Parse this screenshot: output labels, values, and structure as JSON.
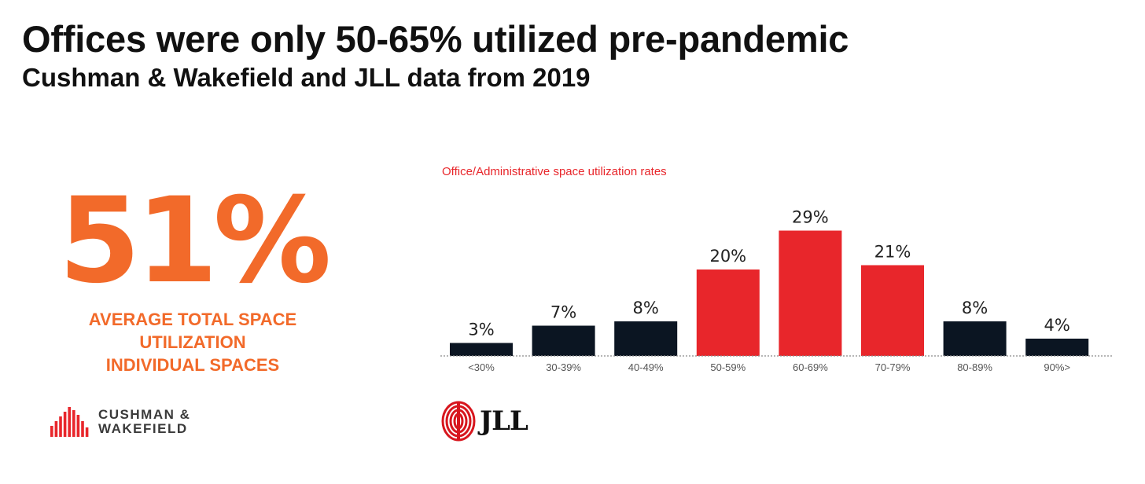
{
  "header": {
    "title": "Offices were only 50-65% utilized pre-pandemic",
    "subtitle": "Cushman & Wakefield and JLL data from 2019"
  },
  "stat": {
    "value": "51%",
    "caption_lines": [
      "AVERAGE TOTAL SPACE",
      "UTILIZATION",
      "INDIVIDUAL SPACES"
    ],
    "color": "#f26a2a"
  },
  "logos": {
    "cushman": {
      "lines": [
        "CUSHMAN &",
        "WAKEFIELD"
      ],
      "color": "#e8262b"
    },
    "jll": {
      "text": "JLL",
      "color": "#d7161e"
    }
  },
  "chart_data": {
    "type": "bar",
    "title": "Office/Administrative space utilization rates",
    "categories": [
      "<30%",
      "30-39%",
      "40-49%",
      "50-59%",
      "60-69%",
      "70-79%",
      "80-89%",
      "90%>"
    ],
    "values": [
      3,
      7,
      8,
      20,
      29,
      21,
      8,
      4
    ],
    "value_labels": [
      "3%",
      "7%",
      "8%",
      "20%",
      "29%",
      "21%",
      "8%",
      "4%"
    ],
    "unit": "%",
    "highlighted": [
      false,
      false,
      false,
      true,
      true,
      true,
      false,
      false
    ],
    "colors": {
      "default": "#0b1522",
      "highlight": "#e8262b"
    },
    "xlabel": "",
    "ylabel": "",
    "ylim": [
      0,
      30
    ],
    "grid": false,
    "legend": "none"
  }
}
